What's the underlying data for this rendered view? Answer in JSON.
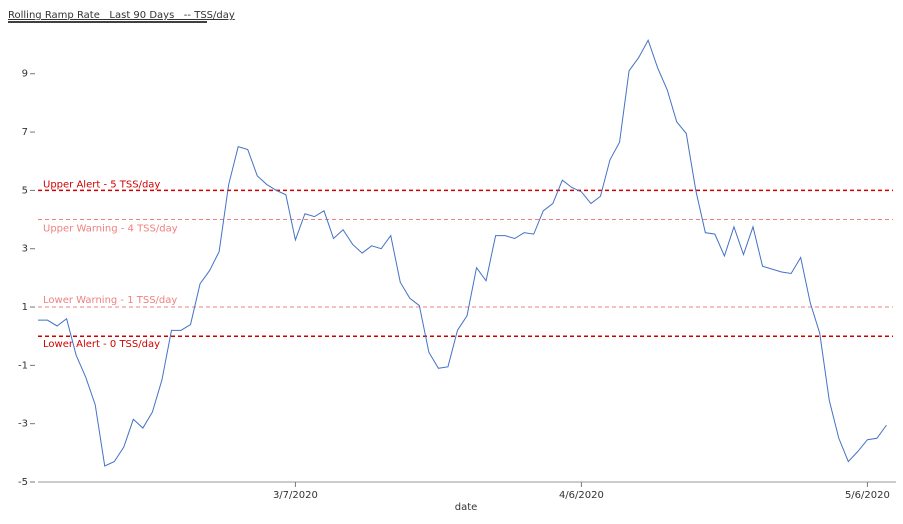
{
  "chart_data": {
    "type": "line",
    "title": "Rolling Ramp Rate   Last 90 Days   -- TSS/day",
    "x_label": "date",
    "x": [
      "2020-02-09",
      "2020-02-10",
      "2020-02-11",
      "2020-02-12",
      "2020-02-13",
      "2020-02-14",
      "2020-02-15",
      "2020-02-16",
      "2020-02-17",
      "2020-02-18",
      "2020-02-19",
      "2020-02-20",
      "2020-02-21",
      "2020-02-22",
      "2020-02-23",
      "2020-02-24",
      "2020-02-25",
      "2020-02-26",
      "2020-02-27",
      "2020-02-28",
      "2020-02-29",
      "2020-03-01",
      "2020-03-02",
      "2020-03-03",
      "2020-03-04",
      "2020-03-05",
      "2020-03-06",
      "2020-03-07",
      "2020-03-08",
      "2020-03-09",
      "2020-03-10",
      "2020-03-11",
      "2020-03-12",
      "2020-03-13",
      "2020-03-14",
      "2020-03-15",
      "2020-03-16",
      "2020-03-17",
      "2020-03-18",
      "2020-03-19",
      "2020-03-20",
      "2020-03-21",
      "2020-03-22",
      "2020-03-23",
      "2020-03-24",
      "2020-03-25",
      "2020-03-26",
      "2020-03-27",
      "2020-03-28",
      "2020-03-29",
      "2020-03-30",
      "2020-03-31",
      "2020-04-01",
      "2020-04-02",
      "2020-04-03",
      "2020-04-04",
      "2020-04-05",
      "2020-04-06",
      "2020-04-07",
      "2020-04-08",
      "2020-04-09",
      "2020-04-10",
      "2020-04-11",
      "2020-04-12",
      "2020-04-13",
      "2020-04-14",
      "2020-04-15",
      "2020-04-16",
      "2020-04-17",
      "2020-04-18",
      "2020-04-19",
      "2020-04-20",
      "2020-04-21",
      "2020-04-22",
      "2020-04-23",
      "2020-04-24",
      "2020-04-25",
      "2020-04-26",
      "2020-04-27",
      "2020-04-28",
      "2020-04-29",
      "2020-04-30",
      "2020-05-01",
      "2020-05-02",
      "2020-05-03",
      "2020-05-04",
      "2020-05-05",
      "2020-05-06",
      "2020-05-07",
      "2020-05-08"
    ],
    "series": [
      {
        "color": "#4472c4",
        "values": [
          0.55,
          0.55,
          0.35,
          0.6,
          -0.65,
          -1.4,
          -2.35,
          -4.45,
          -4.3,
          -3.8,
          -2.85,
          -3.15,
          -2.6,
          -1.5,
          0.2,
          0.2,
          0.4,
          1.8,
          2.25,
          2.9,
          5.2,
          6.5,
          6.4,
          5.5,
          5.2,
          5.0,
          4.85,
          3.3,
          4.2,
          4.1,
          4.3,
          3.35,
          3.65,
          3.15,
          2.85,
          3.1,
          3.0,
          3.45,
          1.85,
          1.3,
          1.05,
          -0.55,
          -1.1,
          -1.05,
          0.2,
          0.7,
          2.35,
          1.9,
          3.45,
          3.45,
          3.35,
          3.55,
          3.5,
          4.3,
          4.55,
          5.35,
          5.1,
          4.95,
          4.55,
          4.8,
          6.05,
          6.65,
          9.1,
          9.55,
          10.15,
          9.2,
          8.45,
          7.35,
          6.95,
          5.0,
          3.55,
          3.5,
          2.75,
          3.75,
          2.8,
          3.75,
          2.4,
          2.3,
          2.2,
          2.15,
          2.7,
          1.15,
          0.1,
          -2.2,
          -3.5,
          -4.3,
          -3.95,
          -3.55,
          -3.5,
          -3.05
        ]
      }
    ],
    "reference_lines": [
      {
        "value": 5,
        "label": "Upper Alert - 5 TSS/day",
        "color": "#d00000"
      },
      {
        "value": 4,
        "label": "Upper Warning - 4 TSS/day",
        "color": "#f08080"
      },
      {
        "value": 1,
        "label": "Lower Warning - 1 TSS/day",
        "color": "#f08080"
      },
      {
        "value": 0,
        "label": "Lower Alert - 0 TSS/day",
        "color": "#d00000"
      }
    ],
    "xlim": [
      "2020-02-09",
      "2020-05-09"
    ],
    "xticks": [
      {
        "value": "2020-03-07",
        "label": "3/7/2020"
      },
      {
        "value": "2020-04-06",
        "label": "4/6/2020"
      },
      {
        "value": "2020-05-06",
        "label": "5/6/2020"
      }
    ],
    "ylim": [
      -5,
      10.5
    ],
    "yticks": [
      -5,
      -3,
      -1,
      1,
      3,
      5,
      7,
      9
    ]
  }
}
